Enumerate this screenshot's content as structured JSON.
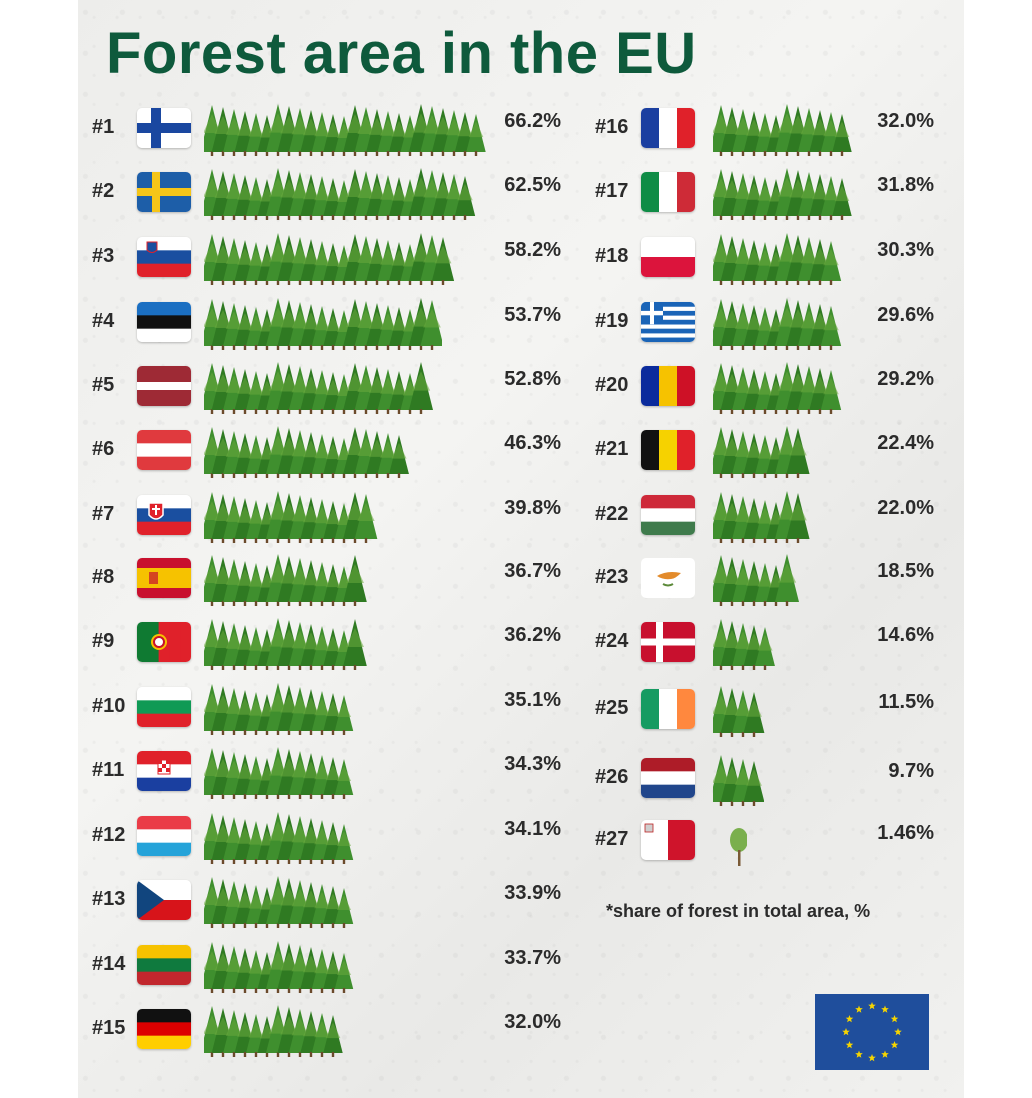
{
  "title": "Forest area in the EU",
  "footnote": "*share of forest in total area, %",
  "colors": {
    "title": "#0e5a3c",
    "tree": "#3e8a2c",
    "tree_light": "#7ab648",
    "trunk": "#6b4a2b"
  },
  "icons": {
    "tree": "pine-tree-icon",
    "eu": "eu-flag-icon"
  },
  "chart_data": {
    "type": "bar",
    "title": "Forest area in the EU",
    "note": "*share of forest in total area, %",
    "categories": [
      "Finland",
      "Sweden",
      "Slovenia",
      "Estonia",
      "Latvia",
      "Austria",
      "Slovakia",
      "Spain",
      "Portugal",
      "Bulgaria",
      "Croatia",
      "Luxembourg",
      "Czechia",
      "Lithuania",
      "Germany",
      "France",
      "Italy",
      "Poland",
      "Greece",
      "Romania",
      "Belgium",
      "Hungary",
      "Cyprus",
      "Denmark",
      "Ireland",
      "Netherlands",
      "Malta"
    ],
    "ranks": [
      "#1",
      "#2",
      "#3",
      "#4",
      "#5",
      "#6",
      "#7",
      "#8",
      "#9",
      "#10",
      "#11",
      "#12",
      "#13",
      "#14",
      "#15",
      "#16",
      "#17",
      "#18",
      "#19",
      "#20",
      "#21",
      "#22",
      "#23",
      "#24",
      "#25",
      "#26",
      "#27"
    ],
    "values": [
      66.2,
      62.5,
      58.2,
      53.7,
      52.8,
      46.3,
      39.8,
      36.7,
      36.2,
      35.1,
      34.3,
      34.1,
      33.9,
      33.7,
      32.0,
      32.0,
      31.8,
      30.3,
      29.6,
      29.2,
      22.4,
      22.0,
      18.5,
      14.6,
      11.5,
      9.7,
      1.46
    ],
    "labels": [
      "66.2%",
      "62.5%",
      "58.2%",
      "53.7%",
      "52.8%",
      "46.3%",
      "39.8%",
      "36.7%",
      "36.2%",
      "35.1%",
      "34.3%",
      "34.1%",
      "33.9%",
      "33.7%",
      "32.0%",
      "32.0%",
      "31.8%",
      "30.3%",
      "29.6%",
      "29.2%",
      "22.4%",
      "22.0%",
      "18.5%",
      "14.6%",
      "11.5%",
      "9.7%",
      "1.46%"
    ]
  }
}
